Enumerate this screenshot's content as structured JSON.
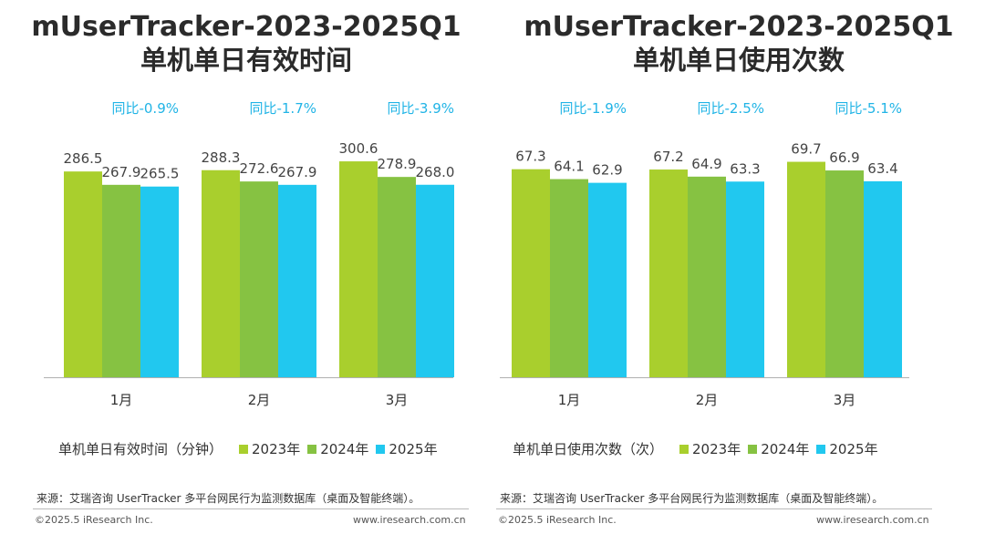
{
  "colors": {
    "y2023": "#a9cf2d",
    "y2024": "#86c242",
    "y2025": "#21c8ef",
    "yoy": "#21b4e6"
  },
  "charts": [
    {
      "title_line1": "mUserTracker-2023-2025Q1",
      "title_line2": "单机单日有效时间",
      "legend_title": "单机单日有效时间（分钟）",
      "source": "来源：艾瑞咨询 UserTracker 多平台网民行为监测数据库（桌面及智能终端）。",
      "copyright": "©2025.5 iResearch Inc.",
      "website": "www.iresearch.com.cn"
    },
    {
      "title_line1": "mUserTracker-2023-2025Q1",
      "title_line2": "单机单日使用次数",
      "legend_title": "单机单日使用次数（次）",
      "source": "来源：艾瑞咨询 UserTracker 多平台网民行为监测数据库（桌面及智能终端）。",
      "copyright": "©2025.5 iResearch Inc.",
      "website": "www.iresearch.com.cn"
    }
  ],
  "chart_data": [
    {
      "type": "bar",
      "title": "mUserTracker-2023-2025Q1 单机单日有效时间",
      "categories": [
        "1月",
        "2月",
        "3月"
      ],
      "series": [
        {
          "name": "2023年",
          "values": [
            286.5,
            288.3,
            300.6
          ]
        },
        {
          "name": "2024年",
          "values": [
            267.9,
            272.6,
            278.9
          ]
        },
        {
          "name": "2025年",
          "values": [
            265.5,
            267.9,
            268.0
          ]
        }
      ],
      "yoy": [
        "同比-0.9%",
        "同比-1.7%",
        "同比-3.9%"
      ],
      "ylim": [
        0,
        340
      ],
      "ylabel": "",
      "xlabel": "",
      "grid": false,
      "legend_position": "bottom"
    },
    {
      "type": "bar",
      "title": "mUserTracker-2023-2025Q1 单机单日使用次数",
      "categories": [
        "1月",
        "2月",
        "3月"
      ],
      "series": [
        {
          "name": "2023年",
          "values": [
            67.3,
            67.2,
            69.7
          ]
        },
        {
          "name": "2024年",
          "values": [
            64.1,
            64.9,
            66.9
          ]
        },
        {
          "name": "2025年",
          "values": [
            62.9,
            63.3,
            63.4
          ]
        }
      ],
      "yoy": [
        "同比-1.9%",
        "同比-2.5%",
        "同比-5.1%"
      ],
      "ylim": [
        0,
        79
      ],
      "ylabel": "",
      "xlabel": "",
      "grid": false,
      "legend_position": "bottom"
    }
  ]
}
